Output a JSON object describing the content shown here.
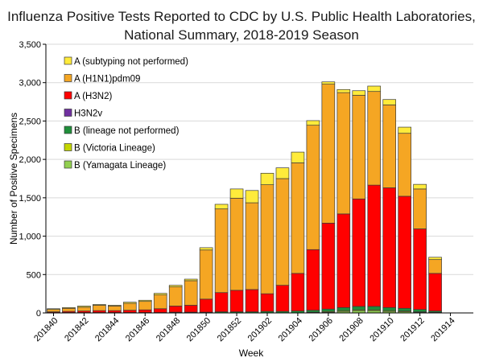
{
  "chart_data": {
    "type": "bar",
    "stacked": true,
    "title": "Influenza Positive Tests Reported to CDC by U.S. Public Health Laboratories,",
    "subtitle": "National Summary, 2018-2019 Season",
    "xlabel": "Week",
    "ylabel": "Number of Positive Specimens",
    "ylim": [
      0,
      3500
    ],
    "yticks": [
      0,
      500,
      1000,
      1500,
      2000,
      2500,
      3000,
      3500
    ],
    "ytick_labels": [
      "0",
      "500",
      "1,000",
      "1,500",
      "2,000",
      "2,500",
      "3,000",
      "3,500"
    ],
    "xtick_labels": [
      "201840",
      "201842",
      "201844",
      "201846",
      "201848",
      "201850",
      "201852",
      "201902",
      "201904",
      "201906",
      "201908",
      "201910",
      "201912",
      "201914"
    ],
    "legend_position": "top-left",
    "categories": [
      "201840",
      "201841",
      "201842",
      "201843",
      "201844",
      "201845",
      "201846",
      "201847",
      "201848",
      "201849",
      "201850",
      "201851",
      "201852",
      "201901",
      "201902",
      "201903",
      "201904",
      "201905",
      "201906",
      "201907",
      "201908",
      "201909",
      "201910",
      "201911",
      "201912",
      "201913",
      "201914",
      "201915"
    ],
    "series": [
      {
        "name": "B (Yamagata Lineage)",
        "color": "#92d050",
        "values": [
          0,
          0,
          0,
          0,
          0,
          0,
          0,
          0,
          0,
          0,
          0,
          0,
          0,
          0,
          0,
          0,
          0,
          5,
          10,
          20,
          30,
          30,
          20,
          15,
          10,
          5,
          0,
          0
        ]
      },
      {
        "name": "B (Victoria Lineage)",
        "color": "#c4d600",
        "values": [
          0,
          0,
          0,
          0,
          0,
          0,
          0,
          0,
          0,
          0,
          0,
          0,
          0,
          0,
          0,
          0,
          0,
          5,
          10,
          10,
          10,
          10,
          10,
          10,
          5,
          5,
          0,
          0
        ]
      },
      {
        "name": "B (lineage not performed)",
        "color": "#1f8f3a",
        "values": [
          5,
          5,
          5,
          5,
          5,
          5,
          5,
          5,
          10,
          10,
          10,
          15,
          15,
          15,
          20,
          20,
          25,
          25,
          30,
          40,
          45,
          45,
          40,
          35,
          30,
          15,
          0,
          0
        ]
      },
      {
        "name": "H3N2v",
        "color": "#7030a0",
        "values": [
          0,
          0,
          0,
          0,
          0,
          0,
          0,
          0,
          0,
          0,
          0,
          0,
          0,
          0,
          0,
          0,
          0,
          0,
          0,
          0,
          0,
          0,
          0,
          0,
          0,
          0,
          0,
          0
        ]
      },
      {
        "name": "A (H3N2)",
        "color": "#ff0000",
        "values": [
          10,
          15,
          20,
          25,
          25,
          30,
          35,
          50,
          80,
          90,
          170,
          250,
          280,
          290,
          230,
          340,
          490,
          790,
          1120,
          1220,
          1400,
          1580,
          1560,
          1460,
          1050,
          490,
          0,
          0
        ]
      },
      {
        "name": "A (H1N1)pdm09",
        "color": "#f5a623",
        "values": [
          30,
          40,
          50,
          70,
          60,
          90,
          110,
          180,
          250,
          320,
          640,
          1090,
          1200,
          1130,
          1420,
          1390,
          1440,
          1620,
          1810,
          1580,
          1350,
          1220,
          1080,
          820,
          520,
          180,
          0,
          0
        ]
      },
      {
        "name": "A (subtyping not performed)",
        "color": "#ffeb3b",
        "values": [
          10,
          10,
          15,
          10,
          10,
          15,
          15,
          20,
          20,
          20,
          30,
          60,
          120,
          160,
          150,
          140,
          140,
          60,
          30,
          40,
          60,
          70,
          70,
          80,
          60,
          30,
          0,
          0
        ]
      }
    ]
  }
}
